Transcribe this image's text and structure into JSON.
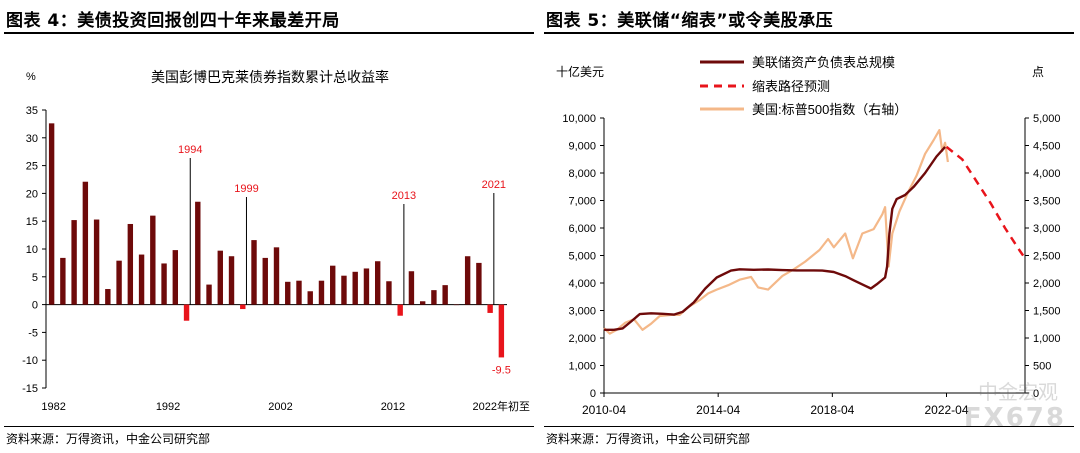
{
  "left": {
    "title": "图表 4：美债投资回报创四十年来最差开局",
    "source": "资料来源：万得资讯，中金公司研究部",
    "chart_data": {
      "type": "bar",
      "title": "美国彭博巴克莱债券指数累计总收益率",
      "unit_label": "%",
      "ylim": [
        -15,
        35
      ],
      "yticks": [
        -15,
        -10,
        -5,
        0,
        5,
        10,
        15,
        20,
        25,
        30,
        35
      ],
      "xtick_labels": [
        "1982",
        "1992",
        "2002",
        "2012",
        "2022年初至"
      ],
      "categories": [
        "1982",
        "1983",
        "1984",
        "1985",
        "1986",
        "1987",
        "1988",
        "1989",
        "1990",
        "1991",
        "1992",
        "1993",
        "1994",
        "1995",
        "1996",
        "1997",
        "1998",
        "1999",
        "2000",
        "2001",
        "2002",
        "2003",
        "2004",
        "2005",
        "2006",
        "2007",
        "2008",
        "2009",
        "2010",
        "2011",
        "2012",
        "2013",
        "2014",
        "2015",
        "2016",
        "2017",
        "2018",
        "2019",
        "2020",
        "2021",
        "2022"
      ],
      "values": [
        32.6,
        8.4,
        15.2,
        22.1,
        15.3,
        2.8,
        7.9,
        14.5,
        9.0,
        16.0,
        7.4,
        9.8,
        -2.9,
        18.5,
        3.6,
        9.7,
        8.7,
        -0.8,
        11.6,
        8.4,
        10.3,
        4.1,
        4.3,
        2.4,
        4.3,
        7.0,
        5.2,
        5.9,
        6.5,
        7.8,
        4.2,
        -2.0,
        6.0,
        0.6,
        2.6,
        3.5,
        0.0,
        8.7,
        7.5,
        -1.5,
        -9.5
      ],
      "colors": {
        "positive": "#6e0a0a",
        "negative": "#e8141b",
        "annotation": "#e8141b"
      },
      "annotations": [
        {
          "label": "1994",
          "year": "1994"
        },
        {
          "label": "1999",
          "year": "1999"
        },
        {
          "label": "2013",
          "year": "2013"
        },
        {
          "label": "2021",
          "year": "2021"
        },
        {
          "label": "-9.5",
          "year": "2022"
        }
      ]
    }
  },
  "right": {
    "title": "图表 5：美联储“缩表”或令美股承压",
    "source": "资料来源：万得资讯，中金公司研究部",
    "watermark": "中金宏观",
    "watermark2": "FX678",
    "chart_data": {
      "type": "line",
      "left_axis_label": "十亿美元",
      "right_axis_label": "点",
      "ylim_left": [
        0,
        10000
      ],
      "yticks_left": [
        "0",
        "1,000",
        "2,000",
        "3,000",
        "4,000",
        "5,000",
        "6,000",
        "7,000",
        "8,000",
        "9,000",
        "10,000"
      ],
      "ylim_right": [
        0,
        5000
      ],
      "yticks_right": [
        "0",
        "500",
        "1,000",
        "1,500",
        "2,000",
        "2,500",
        "3,000",
        "3,500",
        "4,000",
        "4,500",
        "5,000"
      ],
      "xtick_labels": [
        "2010-04",
        "2014-04",
        "2018-04",
        "2022-04"
      ],
      "xlim": [
        2010.25,
        2025.0
      ],
      "series": [
        {
          "name": "美联储资产负债表总规模",
          "axis": "left",
          "color": "#6e0a0a",
          "style": "solid",
          "points": [
            [
              2010.25,
              2300
            ],
            [
              2010.6,
              2300
            ],
            [
              2010.9,
              2350
            ],
            [
              2011.2,
              2600
            ],
            [
              2011.5,
              2870
            ],
            [
              2011.9,
              2900
            ],
            [
              2012.3,
              2880
            ],
            [
              2012.7,
              2850
            ],
            [
              2013.0,
              2950
            ],
            [
              2013.4,
              3300
            ],
            [
              2013.8,
              3800
            ],
            [
              2014.2,
              4200
            ],
            [
              2014.7,
              4450
            ],
            [
              2015.0,
              4500
            ],
            [
              2015.5,
              4480
            ],
            [
              2016.0,
              4490
            ],
            [
              2016.5,
              4470
            ],
            [
              2017.0,
              4460
            ],
            [
              2017.6,
              4460
            ],
            [
              2017.9,
              4450
            ],
            [
              2018.3,
              4400
            ],
            [
              2018.7,
              4250
            ],
            [
              2019.0,
              4100
            ],
            [
              2019.4,
              3900
            ],
            [
              2019.6,
              3800
            ],
            [
              2019.8,
              3950
            ],
            [
              2020.1,
              4200
            ],
            [
              2020.17,
              4600
            ],
            [
              2020.25,
              5800
            ],
            [
              2020.35,
              6700
            ],
            [
              2020.5,
              7050
            ],
            [
              2020.8,
              7200
            ],
            [
              2021.1,
              7500
            ],
            [
              2021.5,
              8000
            ],
            [
              2021.9,
              8600
            ],
            [
              2022.2,
              8950
            ]
          ]
        },
        {
          "name": "缩表路径预测",
          "axis": "left",
          "color": "#e8141b",
          "style": "dashed",
          "points": [
            [
              2022.25,
              8950
            ],
            [
              2022.8,
              8500
            ],
            [
              2023.3,
              7700
            ],
            [
              2023.8,
              6900
            ],
            [
              2024.3,
              6000
            ],
            [
              2024.8,
              5200
            ],
            [
              2025.0,
              4900
            ]
          ]
        },
        {
          "name": "美国:标普500指数（右轴）",
          "axis": "right",
          "color": "#f4b889",
          "style": "solid",
          "points": [
            [
              2010.25,
              1180
            ],
            [
              2010.45,
              1080
            ],
            [
              2010.7,
              1150
            ],
            [
              2011.0,
              1280
            ],
            [
              2011.3,
              1340
            ],
            [
              2011.6,
              1150
            ],
            [
              2011.9,
              1260
            ],
            [
              2012.2,
              1400
            ],
            [
              2012.6,
              1420
            ],
            [
              2012.9,
              1420
            ],
            [
              2013.2,
              1560
            ],
            [
              2013.6,
              1690
            ],
            [
              2013.9,
              1810
            ],
            [
              2014.2,
              1880
            ],
            [
              2014.6,
              1960
            ],
            [
              2015.0,
              2060
            ],
            [
              2015.4,
              2110
            ],
            [
              2015.65,
              1920
            ],
            [
              2016.0,
              1880
            ],
            [
              2016.5,
              2130
            ],
            [
              2016.9,
              2250
            ],
            [
              2017.3,
              2390
            ],
            [
              2017.8,
              2600
            ],
            [
              2018.1,
              2800
            ],
            [
              2018.3,
              2650
            ],
            [
              2018.7,
              2900
            ],
            [
              2018.97,
              2450
            ],
            [
              2019.3,
              2900
            ],
            [
              2019.7,
              2980
            ],
            [
              2020.0,
              3250
            ],
            [
              2020.1,
              3380
            ],
            [
              2020.22,
              2300
            ],
            [
              2020.35,
              2900
            ],
            [
              2020.6,
              3300
            ],
            [
              2020.9,
              3650
            ],
            [
              2021.2,
              3950
            ],
            [
              2021.5,
              4350
            ],
            [
              2021.8,
              4600
            ],
            [
              2022.0,
              4780
            ],
            [
              2022.1,
              4400
            ],
            [
              2022.2,
              4550
            ],
            [
              2022.3,
              4200
            ]
          ]
        }
      ]
    }
  }
}
